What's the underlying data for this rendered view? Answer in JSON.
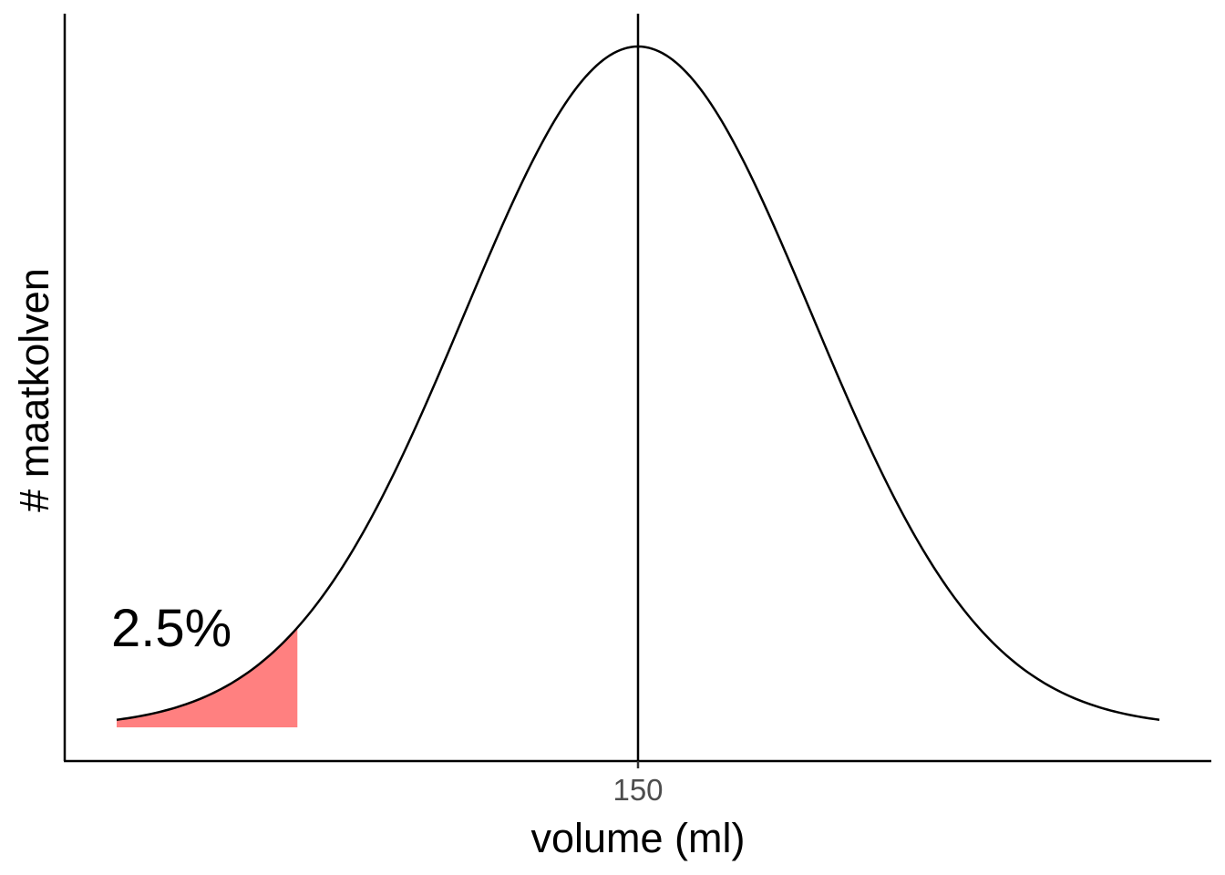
{
  "chart_data": {
    "type": "area",
    "title": "",
    "xlabel": "volume (ml)",
    "ylabel": "# maatkolven",
    "x_ticks": [
      150
    ],
    "x_tick_labels": [
      "150"
    ],
    "distribution": {
      "name": "normal",
      "mean": 150,
      "sd_units_shown": [
        -3.0,
        3.0
      ]
    },
    "mean_line": {
      "x": 150
    },
    "shaded_region": {
      "from_z": -3.0,
      "to_z": -1.96,
      "color": "#ff8080",
      "label": "2.5%"
    },
    "grid": false,
    "legend": "none"
  }
}
